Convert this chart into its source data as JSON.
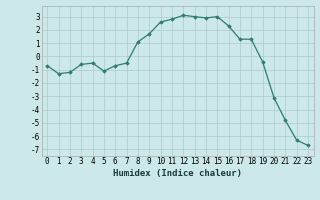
{
  "x": [
    0,
    1,
    2,
    3,
    4,
    5,
    6,
    7,
    8,
    9,
    10,
    11,
    12,
    13,
    14,
    15,
    16,
    17,
    18,
    19,
    20,
    21,
    22,
    23
  ],
  "y": [
    -0.7,
    -1.3,
    -1.2,
    -0.6,
    -0.5,
    -1.1,
    -0.7,
    -0.5,
    1.1,
    1.7,
    2.6,
    2.8,
    3.1,
    3.0,
    2.9,
    3.0,
    2.3,
    1.3,
    1.3,
    -0.4,
    -3.1,
    -4.8,
    -6.3,
    -6.7
  ],
  "line_color": "#2e7d6e",
  "marker": "D",
  "marker_size": 1.8,
  "bg_color": "#cce8e8",
  "grid_color": "#aacccc",
  "xlabel": "Humidex (Indice chaleur)",
  "xlim": [
    -0.5,
    23.5
  ],
  "ylim": [
    -7.5,
    3.8
  ],
  "xticks": [
    0,
    1,
    2,
    3,
    4,
    5,
    6,
    7,
    8,
    9,
    10,
    11,
    12,
    13,
    14,
    15,
    16,
    17,
    18,
    19,
    20,
    21,
    22,
    23
  ],
  "yticks": [
    -7,
    -6,
    -5,
    -4,
    -3,
    -2,
    -1,
    0,
    1,
    2,
    3
  ],
  "tick_fontsize": 5.5,
  "xlabel_fontsize": 6.5
}
